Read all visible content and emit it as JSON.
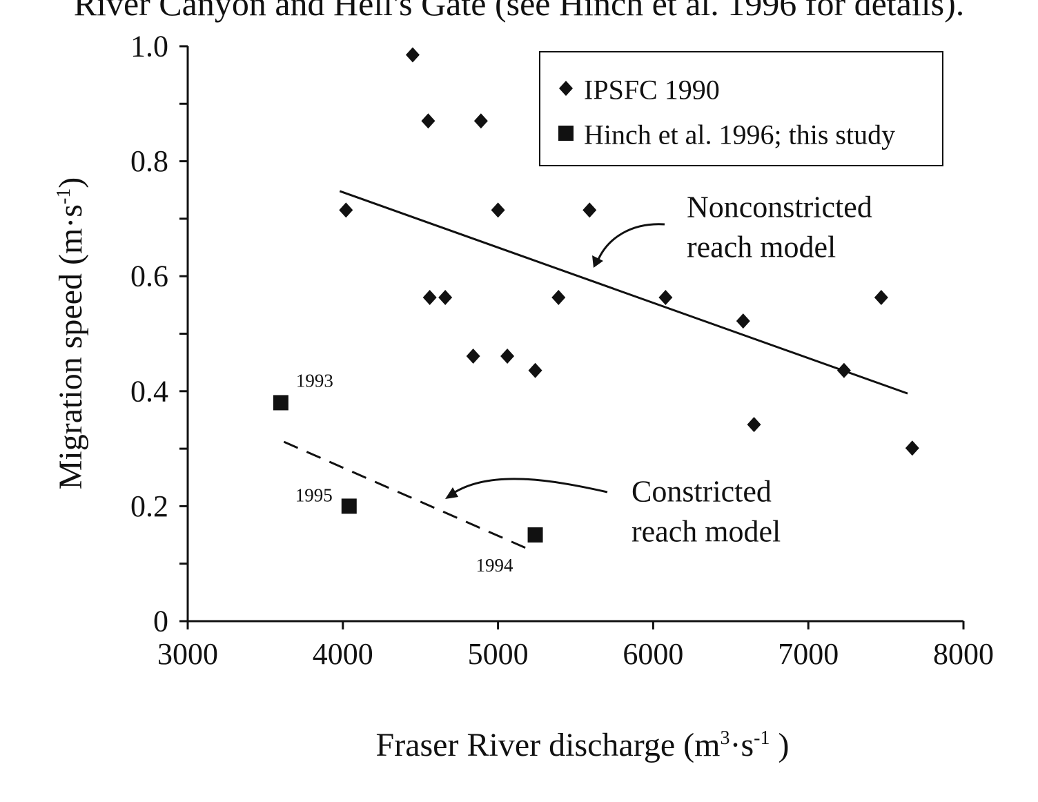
{
  "caption": "River Canyon and Hell's Gate (see Hinch et al. 1996 for details).",
  "chart_data": {
    "type": "scatter",
    "xlabel": [
      "Fraser River discharge (m",
      "3",
      "·s",
      "-1",
      " )"
    ],
    "ylabel": [
      "Migration speed (m·s",
      "-1",
      ")"
    ],
    "xlim": [
      3000,
      8000
    ],
    "xticks": [
      3000,
      4000,
      5000,
      6000,
      7000,
      8000
    ],
    "ylim": [
      0,
      1
    ],
    "yticks": [
      0,
      0.2,
      0.4,
      0.6,
      0.8,
      {
        "value": 1,
        "label": "1.0"
      }
    ],
    "yminorticks": [
      0.1,
      0.3,
      0.5,
      0.7,
      0.9
    ],
    "series": [
      {
        "name": "IPSFC 1990",
        "marker": "diamond",
        "color": "#111111",
        "x": [
          4450,
          4550,
          4890,
          4020,
          5000,
          5590,
          4560,
          4660,
          5390,
          6080,
          7470,
          6580,
          4840,
          5060,
          5240,
          7230,
          6650,
          7670
        ],
        "values": [
          0.985,
          0.87,
          0.87,
          0.715,
          0.715,
          0.715,
          0.563,
          0.563,
          0.563,
          0.563,
          0.563,
          0.522,
          0.461,
          0.461,
          0.436,
          0.436,
          0.342,
          0.301
        ]
      },
      {
        "name": "Hinch et al. 1996; this study",
        "marker": "square",
        "color": "#111111",
        "x": [
          3600,
          4040,
          5240
        ],
        "values": [
          0.38,
          0.2,
          0.15
        ],
        "point_labels": [
          "1993",
          "1995",
          "1994"
        ]
      }
    ],
    "lines": [
      {
        "x": [
          3980,
          7640
        ],
        "values": [
          0.748,
          0.396
        ],
        "style": "solid",
        "label": [
          "Nonconstricted",
          "reach model"
        ]
      },
      {
        "x": [
          3620,
          5190
        ],
        "values": [
          0.312,
          0.126
        ],
        "style": "dashed",
        "label": [
          "Constricted",
          "reach model"
        ]
      }
    ],
    "legend": "top-right"
  }
}
